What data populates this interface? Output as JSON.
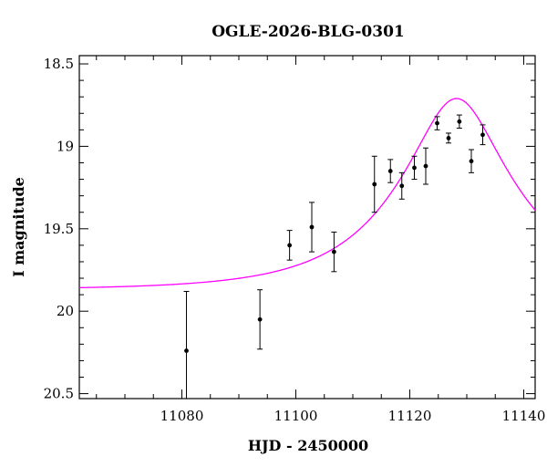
{
  "chart_data": {
    "type": "scatter",
    "title": "OGLE-2026-BLG-0301",
    "xlabel": "HJD - 2450000",
    "ylabel": "I magnitude",
    "xlim": [
      11062,
      11142
    ],
    "ylim": [
      18.45,
      20.53
    ],
    "y_inverted": true,
    "grid": false,
    "x_ticks": [
      {
        "value": 11080,
        "label": "11080"
      },
      {
        "value": 11100,
        "label": "11100"
      },
      {
        "value": 11120,
        "label": "11120"
      },
      {
        "value": 11140,
        "label": "11140"
      }
    ],
    "y_ticks": [
      {
        "value": 18.5,
        "label": "18.5"
      },
      {
        "value": 19.0,
        "label": "19"
      },
      {
        "value": 19.5,
        "label": "19.5"
      },
      {
        "value": 20.0,
        "label": "20"
      },
      {
        "value": 20.5,
        "label": "20.5"
      }
    ],
    "x_minor_step": 5,
    "y_minor_step": 0.1,
    "series": [
      {
        "name": "observations",
        "type": "errorbar",
        "color": "#000000",
        "points": [
          {
            "x": 11080.8,
            "y": 20.24,
            "err": 0.36
          },
          {
            "x": 11093.7,
            "y": 20.05,
            "err": 0.18
          },
          {
            "x": 11098.9,
            "y": 19.6,
            "err": 0.09
          },
          {
            "x": 11102.8,
            "y": 19.49,
            "err": 0.15
          },
          {
            "x": 11106.7,
            "y": 19.64,
            "err": 0.12
          },
          {
            "x": 11113.8,
            "y": 19.23,
            "err": 0.17
          },
          {
            "x": 11116.6,
            "y": 19.15,
            "err": 0.07
          },
          {
            "x": 11118.6,
            "y": 19.24,
            "err": 0.08
          },
          {
            "x": 11120.8,
            "y": 19.13,
            "err": 0.07
          },
          {
            "x": 11122.8,
            "y": 19.12,
            "err": 0.11
          },
          {
            "x": 11124.8,
            "y": 18.86,
            "err": 0.04
          },
          {
            "x": 11126.8,
            "y": 18.95,
            "err": 0.03
          },
          {
            "x": 11128.7,
            "y": 18.85,
            "err": 0.04
          },
          {
            "x": 11130.8,
            "y": 19.09,
            "err": 0.07
          },
          {
            "x": 11132.8,
            "y": 18.93,
            "err": 0.06
          }
        ]
      },
      {
        "name": "model",
        "type": "line",
        "color": "#ff00ff",
        "model": {
          "kind": "paczynski",
          "t0": 11128.2,
          "u0": 0.36,
          "tE": 20.0,
          "baseline_mag": 19.87
        }
      }
    ]
  }
}
